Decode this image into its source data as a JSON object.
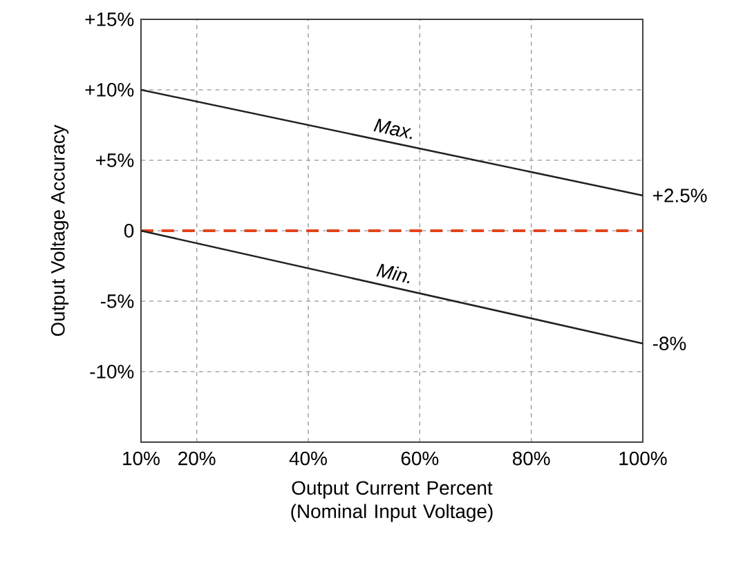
{
  "chart_data": {
    "type": "line",
    "xlabel": "Output Current Percent (Nominal Input Voltage)",
    "ylabel": "Output Voltage Accuracy",
    "series": [
      {
        "name": "Max.",
        "color": "#222222",
        "values": [
          10,
          2.5
        ]
      },
      {
        "name": "Min.",
        "color": "#222222",
        "values": [
          0,
          -8
        ]
      }
    ],
    "x": [
      10,
      100
    ],
    "xlim": [
      10,
      100
    ],
    "xticks": [
      {
        "value": 10,
        "label": "10%"
      },
      {
        "value": 20,
        "label": "20%"
      },
      {
        "value": 40,
        "label": "40%"
      },
      {
        "value": 60,
        "label": "60%"
      },
      {
        "value": 80,
        "label": "80%"
      },
      {
        "value": 100,
        "label": "100%"
      }
    ],
    "ylim": [
      -15,
      15
    ],
    "yticks": [
      {
        "value": -10,
        "label": "-10%"
      },
      {
        "value": -5,
        "label": "-5%"
      },
      0,
      {
        "value": 5,
        "label": "+5%"
      },
      {
        "value": 10,
        "label": "+10%"
      },
      {
        "value": 15,
        "label": "+15%"
      }
    ],
    "grid": true,
    "marker": "none",
    "line_style": "solid",
    "ref_lines": [
      {
        "axis": "y",
        "value": 0,
        "color": "#e2431c",
        "line_style": "dashed"
      }
    ],
    "annotations": [
      {
        "text": "+2.5%",
        "x": 100,
        "y": 2.5
      },
      {
        "text": "-8%",
        "x": 100,
        "y": -8
      }
    ]
  }
}
